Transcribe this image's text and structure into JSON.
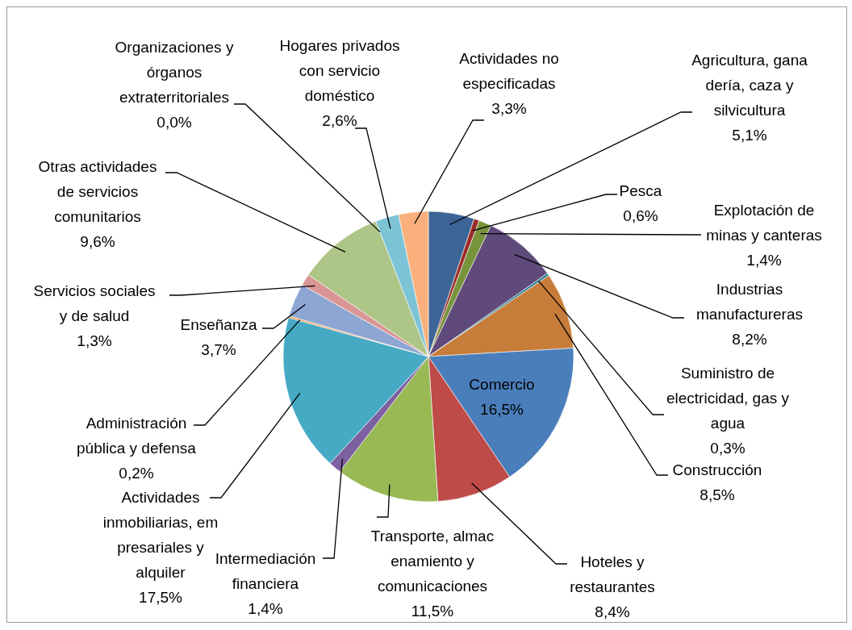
{
  "chart_data": {
    "type": "pie",
    "categories": [
      "Agricultura, gana dería, caza y silvicultura",
      "Pesca",
      "Explotación de minas y canteras",
      "Industrias manufactureras",
      "Suministro de electricidad, gas y agua",
      "Construcción",
      "Comercio",
      "Hoteles y restaurantes",
      "Transporte, almac enamiento y comunicaciones",
      "Intermediación financiera",
      "Actividades inmobiliarias, em presariales y alquiler",
      "Administración pública y defensa",
      "Enseñanza",
      "Servicios sociales y de salud",
      "Otras actividades de servicios comunitarios",
      "Organizaciones y órganos extraterritoriales",
      "Hogares privados con servicio doméstico",
      "Actividades no especificadas"
    ],
    "values": [
      5.1,
      0.6,
      1.4,
      8.2,
      0.3,
      8.5,
      16.5,
      8.4,
      11.5,
      1.4,
      17.5,
      0.2,
      3.7,
      1.3,
      9.6,
      0.0,
      2.6,
      3.3
    ],
    "value_labels": [
      "5,1%",
      "0,6%",
      "1,4%",
      "8,2%",
      "0,3%",
      "8,5%",
      "16,5%",
      "8,4%",
      "11,5%",
      "1,4%",
      "17,5%",
      "0,2%",
      "3,7%",
      "1,3%",
      "9,6%",
      "0,0%",
      "2,6%",
      "3,3%"
    ],
    "colors": [
      "#3c6496",
      "#9b2d2a",
      "#77933c",
      "#604a7b",
      "#31859c",
      "#c77c39",
      "#4a7ebb",
      "#be4b48",
      "#98b954",
      "#7d60a0",
      "#46aac5",
      "#f79646",
      "#8ea6d4",
      "#d99694",
      "#adc687",
      "#a997c4",
      "#7cc3d6",
      "#fab07c"
    ]
  }
}
